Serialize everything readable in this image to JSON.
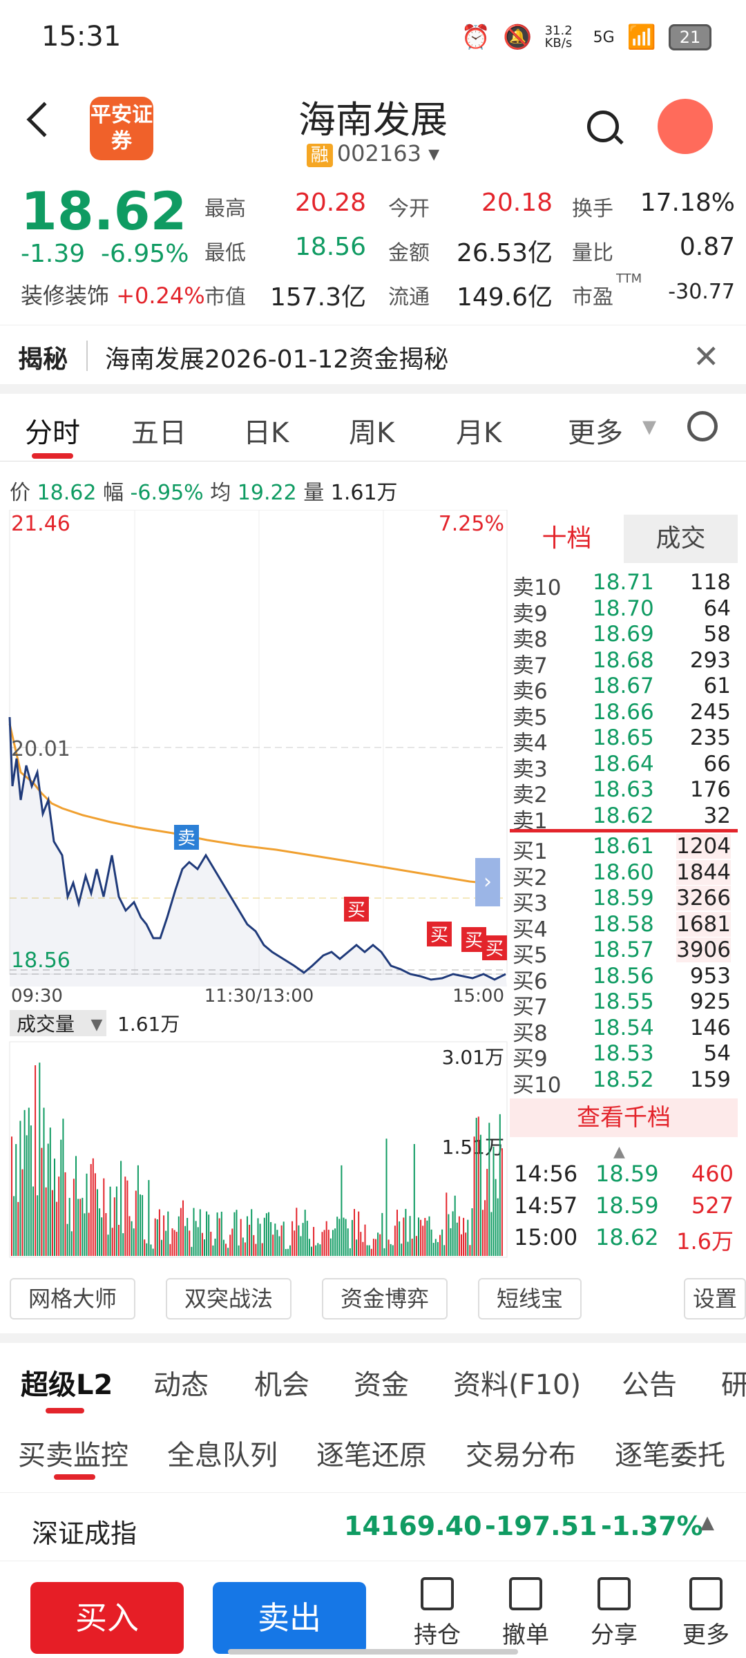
{
  "status": {
    "time": "15:31",
    "speed": "31.2 KB/s",
    "net": "5G",
    "battery": "21"
  },
  "header": {
    "logo": "平安证券",
    "title": "海南发展",
    "margin_badge": "融",
    "code": "002163"
  },
  "quote": {
    "price": "18.62",
    "change": "-1.39",
    "change_pct": "-6.95%",
    "industry": "装修装饰",
    "industry_pct": "+0.24%",
    "high_label": "最高",
    "high": "20.28",
    "open_label": "今开",
    "open": "20.18",
    "turnover_label": "换手",
    "turnover": "17.18%",
    "low_label": "最低",
    "low": "18.56",
    "amount_label": "金额",
    "amount": "26.53亿",
    "vr_label": "量比",
    "vr": "0.87",
    "mcap_label": "市值",
    "mcap": "157.3亿",
    "float_label": "流通",
    "float": "149.6亿",
    "pe_label": "市盈",
    "pe_sup": "TTM",
    "pe": "-30.77"
  },
  "banner": {
    "label": "揭秘",
    "text": "海南发展2026-01-12资金揭秘"
  },
  "ktabs": [
    "分时",
    "五日",
    "日K",
    "周K",
    "月K",
    "更多"
  ],
  "stats": {
    "price_label": "价",
    "price": "18.62",
    "amp_label": "幅",
    "amp": "-6.95%",
    "avg_label": "均",
    "avg": "19.22",
    "vol_label": "量",
    "vol": "1.61万"
  },
  "chart": {
    "y_top": "21.46",
    "y_top_pct": "7.25%",
    "y_mid": "20.01",
    "y_low": "18.56",
    "x_start": "09:30",
    "x_mid": "11:30/13:00",
    "x_end": "15:00",
    "sell_marker": "卖",
    "buy_marker": "买",
    "vol_label": "成交量",
    "vol_value": "1.61万",
    "vol_max": "3.01万",
    "vol_mid": "1.51万"
  },
  "orderbook": {
    "tab1": "十档",
    "tab2": "成交",
    "asks": [
      [
        "卖10",
        "18.71",
        "118"
      ],
      [
        "卖9",
        "18.70",
        "64"
      ],
      [
        "卖8",
        "18.69",
        "58"
      ],
      [
        "卖7",
        "18.68",
        "293"
      ],
      [
        "卖6",
        "18.67",
        "61"
      ],
      [
        "卖5",
        "18.66",
        "245"
      ],
      [
        "卖4",
        "18.65",
        "235"
      ],
      [
        "卖3",
        "18.64",
        "66"
      ],
      [
        "卖2",
        "18.63",
        "176"
      ],
      [
        "卖1",
        "18.62",
        "32"
      ]
    ],
    "bids": [
      [
        "买1",
        "18.61",
        "1204"
      ],
      [
        "买2",
        "18.60",
        "1844"
      ],
      [
        "买3",
        "18.59",
        "3266"
      ],
      [
        "买4",
        "18.58",
        "1681"
      ],
      [
        "买5",
        "18.57",
        "3906"
      ],
      [
        "买6",
        "18.56",
        "953"
      ],
      [
        "买7",
        "18.55",
        "925"
      ],
      [
        "买8",
        "18.54",
        "146"
      ],
      [
        "买9",
        "18.53",
        "54"
      ],
      [
        "买10",
        "18.52",
        "159"
      ]
    ],
    "more": "查看千档",
    "ticks": [
      [
        "14:56",
        "18.59",
        "460"
      ],
      [
        "14:57",
        "18.59",
        "527"
      ],
      [
        "15:00",
        "18.62",
        "1.6万"
      ]
    ]
  },
  "tools": [
    "网格大师",
    "双突战法",
    "资金博弈",
    "短线宝",
    "设置"
  ],
  "l2tabs": [
    "超级L2",
    "动态",
    "机会",
    "资金",
    "资料(F10)",
    "公告",
    "研"
  ],
  "subtabs": [
    "买卖监控",
    "全息队列",
    "逐笔还原",
    "交易分布",
    "逐笔委托"
  ],
  "index": {
    "name": "深证成指",
    "value": "14169.40",
    "change": "-197.51",
    "pct": "-1.37%"
  },
  "bottom": {
    "buy": "买入",
    "sell": "卖出",
    "hold": "持仓",
    "cancel": "撤单",
    "share": "分享",
    "more": "更多"
  },
  "colors": {
    "up": "#e3242b",
    "down": "#0f9b62",
    "avg_line": "#f0a030",
    "price_line": "#1f3a7a"
  }
}
